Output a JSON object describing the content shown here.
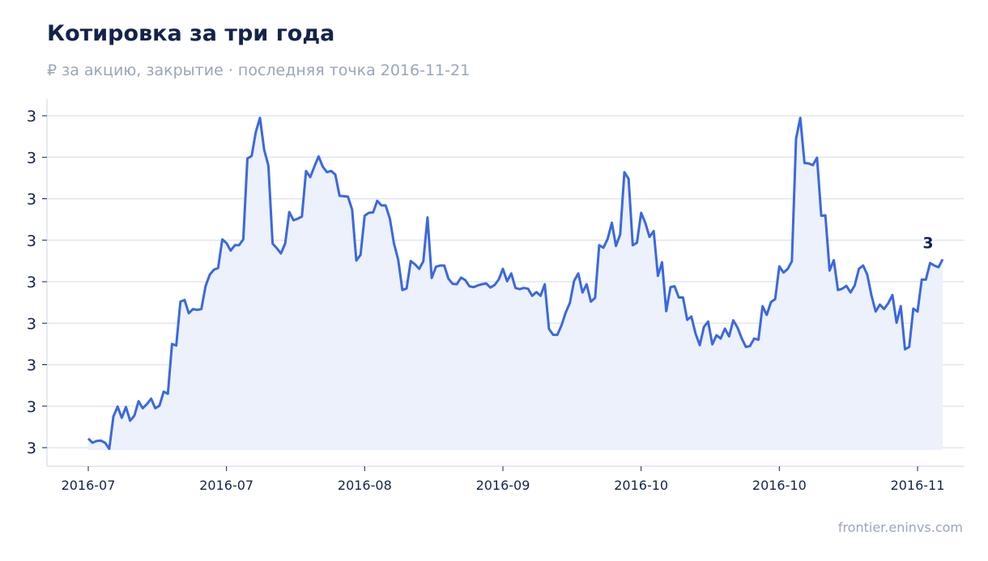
{
  "header": {
    "title": "Котировка за три года",
    "subtitle": "₽ за акцию, закрытие · последняя точка 2016-11-21"
  },
  "footer": {
    "source": "frontier.eninvs.com"
  },
  "colors": {
    "line": "#3a68e0",
    "area": "#edf1fc",
    "grid": "#e1e5ee",
    "axis": "#dfe3ea"
  },
  "chart_data": {
    "type": "area",
    "title": "Котировка за три года",
    "xlabel": "",
    "ylabel": "",
    "grid": true,
    "legend": "none",
    "end_label": "3",
    "ylim": [
      2.9,
      3.8
    ],
    "yticks": [
      2.9,
      3.0,
      3.1,
      3.2,
      3.3,
      3.4,
      3.5,
      3.6,
      3.7
    ],
    "ytick_labels": [
      "3",
      "3",
      "3",
      "3",
      "3",
      "3",
      "3",
      "3",
      "3"
    ],
    "xticks": [
      {
        "value": 0,
        "label": "2016-07"
      },
      {
        "value": 33,
        "label": "2016-07"
      },
      {
        "value": 66,
        "label": "2016-08"
      },
      {
        "value": 99,
        "label": "2016-09"
      },
      {
        "value": 132,
        "label": "2016-10"
      },
      {
        "value": 165,
        "label": "2016-10"
      },
      {
        "value": 198,
        "label": "2016-11"
      }
    ],
    "series": [
      {
        "values": [
          2.922,
          2.912,
          2.916,
          2.917,
          2.912,
          2.897,
          2.975,
          2.999,
          2.972,
          2.998,
          2.965,
          2.977,
          3.012,
          2.995,
          3.005,
          3.018,
          2.995,
          3.001,
          3.035,
          3.03,
          3.15,
          3.146,
          3.252,
          3.256,
          3.224,
          3.234,
          3.232,
          3.234,
          3.289,
          3.317,
          3.329,
          3.333,
          3.402,
          3.393,
          3.375,
          3.388,
          3.388,
          3.402,
          3.597,
          3.603,
          3.661,
          3.695,
          3.618,
          3.58,
          3.392,
          3.381,
          3.368,
          3.392,
          3.468,
          3.448,
          3.452,
          3.457,
          3.567,
          3.552,
          3.578,
          3.602,
          3.577,
          3.564,
          3.567,
          3.558,
          3.507,
          3.506,
          3.505,
          3.474,
          3.351,
          3.365,
          3.459,
          3.466,
          3.467,
          3.495,
          3.484,
          3.484,
          3.452,
          3.392,
          3.353,
          3.28,
          3.284,
          3.35,
          3.342,
          3.331,
          3.349,
          3.455,
          3.309,
          3.336,
          3.339,
          3.339,
          3.307,
          3.295,
          3.294,
          3.31,
          3.304,
          3.289,
          3.287,
          3.291,
          3.294,
          3.296,
          3.286,
          3.292,
          3.305,
          3.331,
          3.301,
          3.32,
          3.285,
          3.282,
          3.285,
          3.283,
          3.266,
          3.275,
          3.266,
          3.294,
          3.186,
          3.172,
          3.172,
          3.195,
          3.226,
          3.249,
          3.302,
          3.32,
          3.274,
          3.294,
          3.252,
          3.261,
          3.388,
          3.382,
          3.403,
          3.442,
          3.386,
          3.414,
          3.564,
          3.548,
          3.388,
          3.394,
          3.466,
          3.442,
          3.408,
          3.422,
          3.314,
          3.347,
          3.229,
          3.287,
          3.289,
          3.262,
          3.262,
          3.208,
          3.216,
          3.175,
          3.147,
          3.191,
          3.204,
          3.149,
          3.171,
          3.163,
          3.187,
          3.168,
          3.207,
          3.19,
          3.164,
          3.143,
          3.145,
          3.163,
          3.16,
          3.241,
          3.22,
          3.251,
          3.258,
          3.337,
          3.322,
          3.331,
          3.349,
          3.645,
          3.695,
          3.586,
          3.585,
          3.581,
          3.599,
          3.459,
          3.46,
          3.327,
          3.352,
          3.28,
          3.283,
          3.29,
          3.274,
          3.291,
          3.331,
          3.339,
          3.317,
          3.267,
          3.228,
          3.245,
          3.234,
          3.248,
          3.268,
          3.201,
          3.241,
          3.137,
          3.143,
          3.235,
          3.228,
          3.305,
          3.305,
          3.345,
          3.339,
          3.335,
          3.354
        ]
      }
    ]
  }
}
